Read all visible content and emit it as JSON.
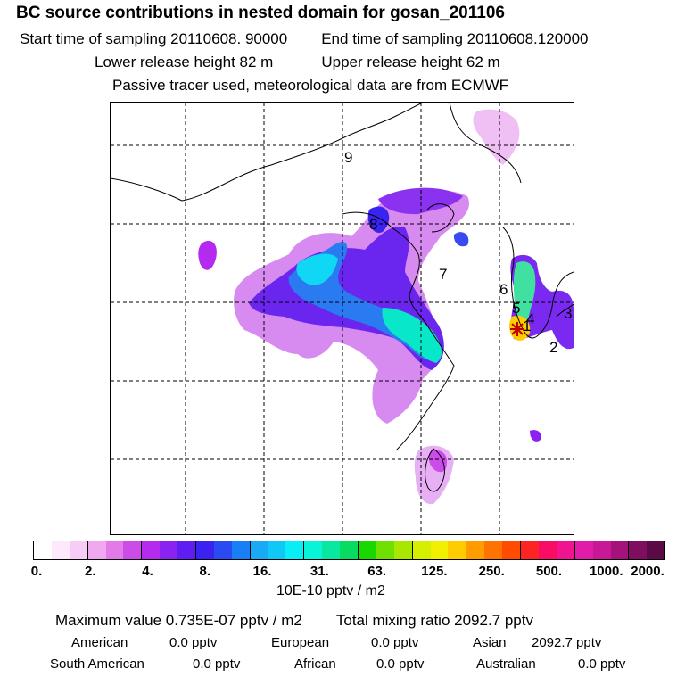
{
  "header": {
    "title": "BC  source contributions in nested domain for gosan_201106",
    "start_label": "Start time of sampling 20110608. 90000",
    "end_label": "End time of sampling 20110608.120000",
    "lower_label": "Lower release height   82 m",
    "upper_label": "Upper release height   62 m",
    "note": "Passive tracer used, meteorological data are from ECMWF"
  },
  "map": {
    "markers": [
      "9",
      "8",
      "7",
      "6",
      "5",
      "4",
      "3",
      "2",
      "1"
    ],
    "receptor": "gosan"
  },
  "colorbar": {
    "colors": [
      "#ffffff",
      "#fde8fc",
      "#f7ccf6",
      "#f0a8f0",
      "#e27ae8",
      "#cc4cea",
      "#b42bef",
      "#8a22f0",
      "#5e1ef2",
      "#3a22f0",
      "#2a4af2",
      "#1880f4",
      "#18aaf4",
      "#10c8f6",
      "#08eef4",
      "#08f4d8",
      "#08e8a0",
      "#08dc60",
      "#18d800",
      "#70e000",
      "#a8e800",
      "#d4f000",
      "#f0f000",
      "#ffcc00",
      "#ff9c00",
      "#ff7400",
      "#ff4c00",
      "#ff2424",
      "#f80c64",
      "#f01490",
      "#e01ca8",
      "#c81898",
      "#a4127c",
      "#800e60",
      "#5a0a46"
    ],
    "ticks": [
      "0.",
      "2.",
      "4.",
      "8.",
      "16.",
      "31.",
      "63.",
      "125.",
      "250.",
      "500.",
      "1000.",
      "2000."
    ],
    "unit": "10E-10 pptv / m2"
  },
  "summary": {
    "max_label": "Maximum value  0.735E-07 pptv / m2",
    "total_label": "Total mixing ratio     2092.7 pptv",
    "regions": [
      {
        "name": "American",
        "value": "0.0 pptv"
      },
      {
        "name": "European",
        "value": "0.0 pptv"
      },
      {
        "name": "Asian",
        "value": "2092.7 pptv"
      },
      {
        "name": "South American",
        "value": "0.0 pptv"
      },
      {
        "name": "African",
        "value": "0.0 pptv"
      },
      {
        "name": "Australian",
        "value": "0.0 pptv"
      }
    ]
  }
}
